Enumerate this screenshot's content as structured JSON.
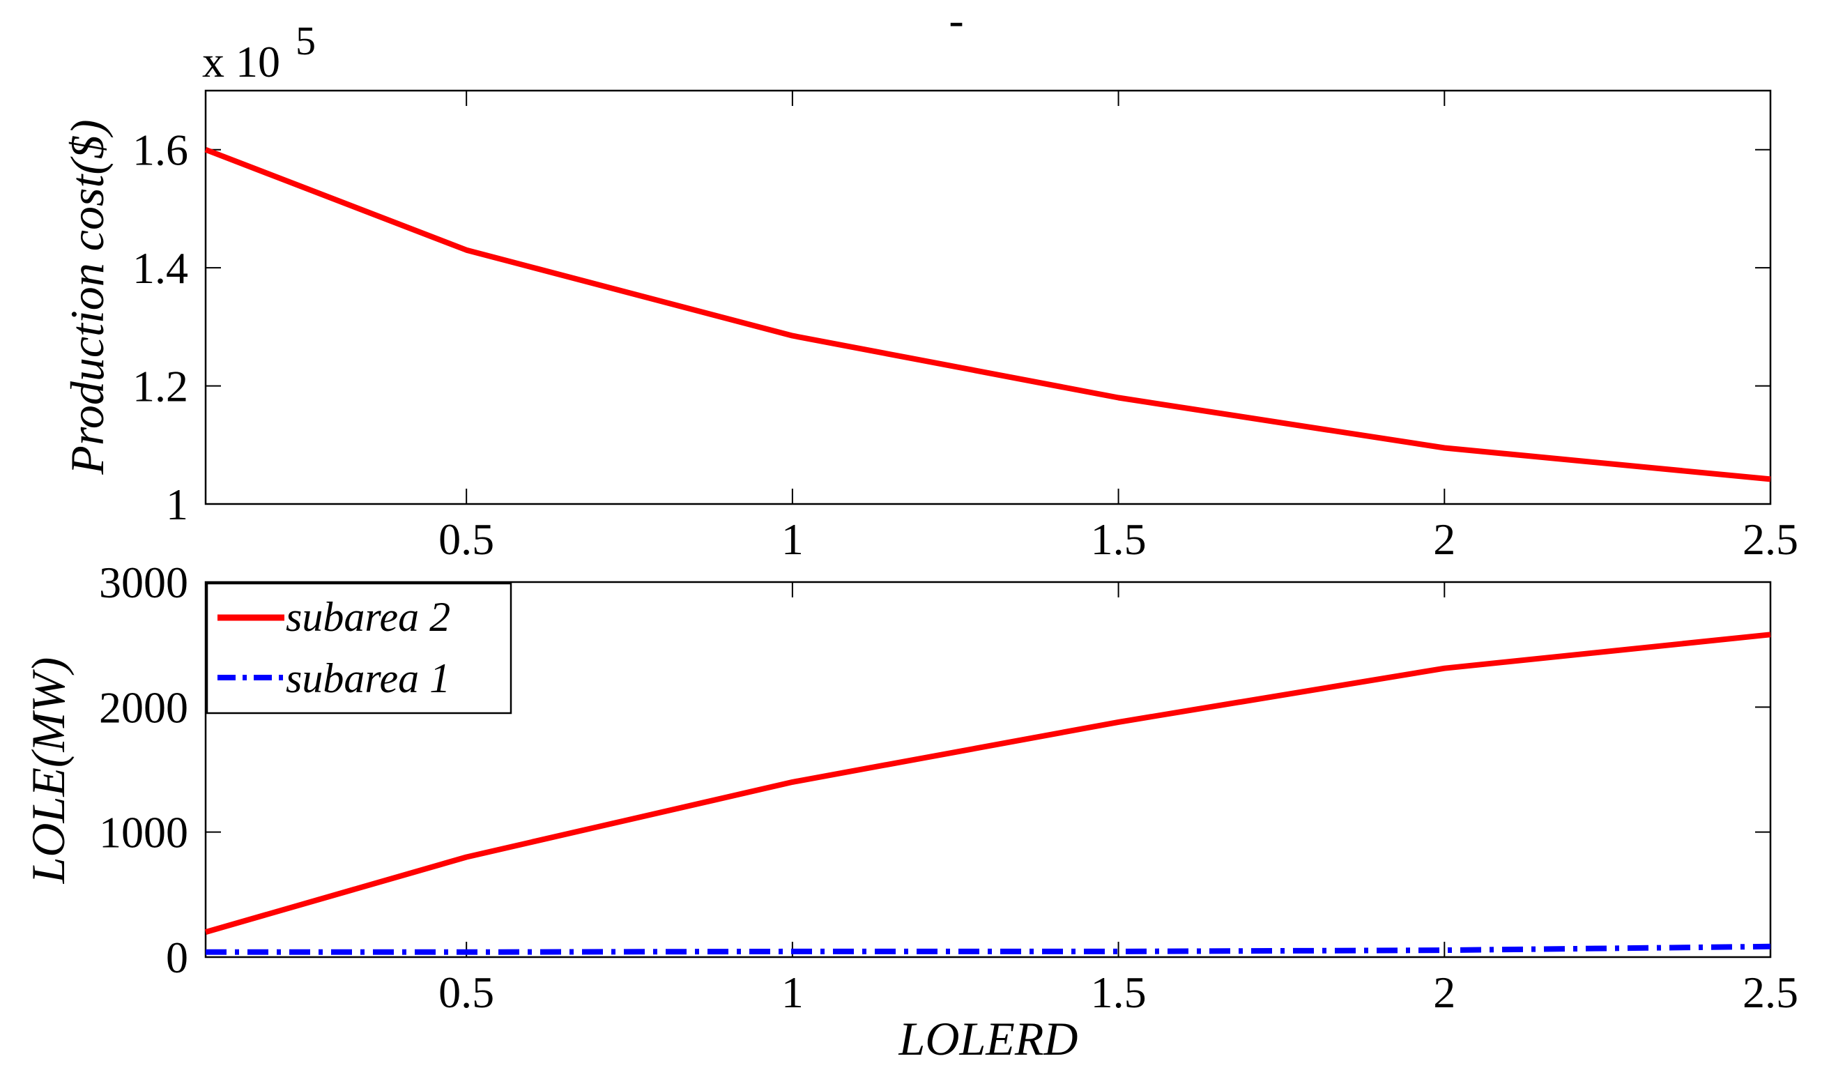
{
  "title": "-",
  "chart_data": [
    {
      "type": "line",
      "title": "",
      "xlabel": "",
      "ylabel": "Production cost($)",
      "y_multiplier_label": "x 10",
      "y_multiplier_exponent": "5",
      "xlim": [
        0.1,
        2.5
      ],
      "ylim": [
        1.0,
        1.7
      ],
      "xticks": [
        0.5,
        1,
        1.5,
        2,
        2.5
      ],
      "xtick_labels": [
        "0.5",
        "1",
        "1.5",
        "2",
        "2.5"
      ],
      "yticks": [
        1.0,
        1.2,
        1.4,
        1.6
      ],
      "ytick_labels": [
        "1",
        "1.2",
        "1.4",
        "1.6"
      ],
      "grid": false,
      "series": [
        {
          "name": "",
          "color": "#ff0000",
          "style": "solid",
          "x": [
            0.1,
            0.5,
            1.0,
            1.5,
            2.0,
            2.5
          ],
          "y": [
            1.6,
            1.43,
            1.285,
            1.18,
            1.095,
            1.042
          ]
        }
      ]
    },
    {
      "type": "line",
      "title": "",
      "xlabel": "LOLERD",
      "ylabel": "LOLE(MW)",
      "xlim": [
        0.1,
        2.5
      ],
      "ylim": [
        0,
        3000
      ],
      "xticks": [
        0.5,
        1,
        1.5,
        2,
        2.5
      ],
      "xtick_labels": [
        "0.5",
        "1",
        "1.5",
        "2",
        "2.5"
      ],
      "yticks": [
        0,
        1000,
        2000,
        3000
      ],
      "ytick_labels": [
        "0",
        "1000",
        "2000",
        "3000"
      ],
      "grid": false,
      "legend_position": "top-left",
      "series": [
        {
          "name": "subarea 2",
          "color": "#ff0000",
          "style": "solid",
          "x": [
            0.1,
            0.5,
            1.0,
            1.5,
            2.0,
            2.5
          ],
          "y": [
            200,
            800,
            1400,
            1880,
            2310,
            2580
          ]
        },
        {
          "name": "subarea 1",
          "color": "#0000ff",
          "style": "dashdot",
          "x": [
            0.1,
            0.5,
            1.0,
            1.5,
            2.0,
            2.5
          ],
          "y": [
            40,
            40,
            45,
            45,
            55,
            85
          ]
        }
      ]
    }
  ]
}
